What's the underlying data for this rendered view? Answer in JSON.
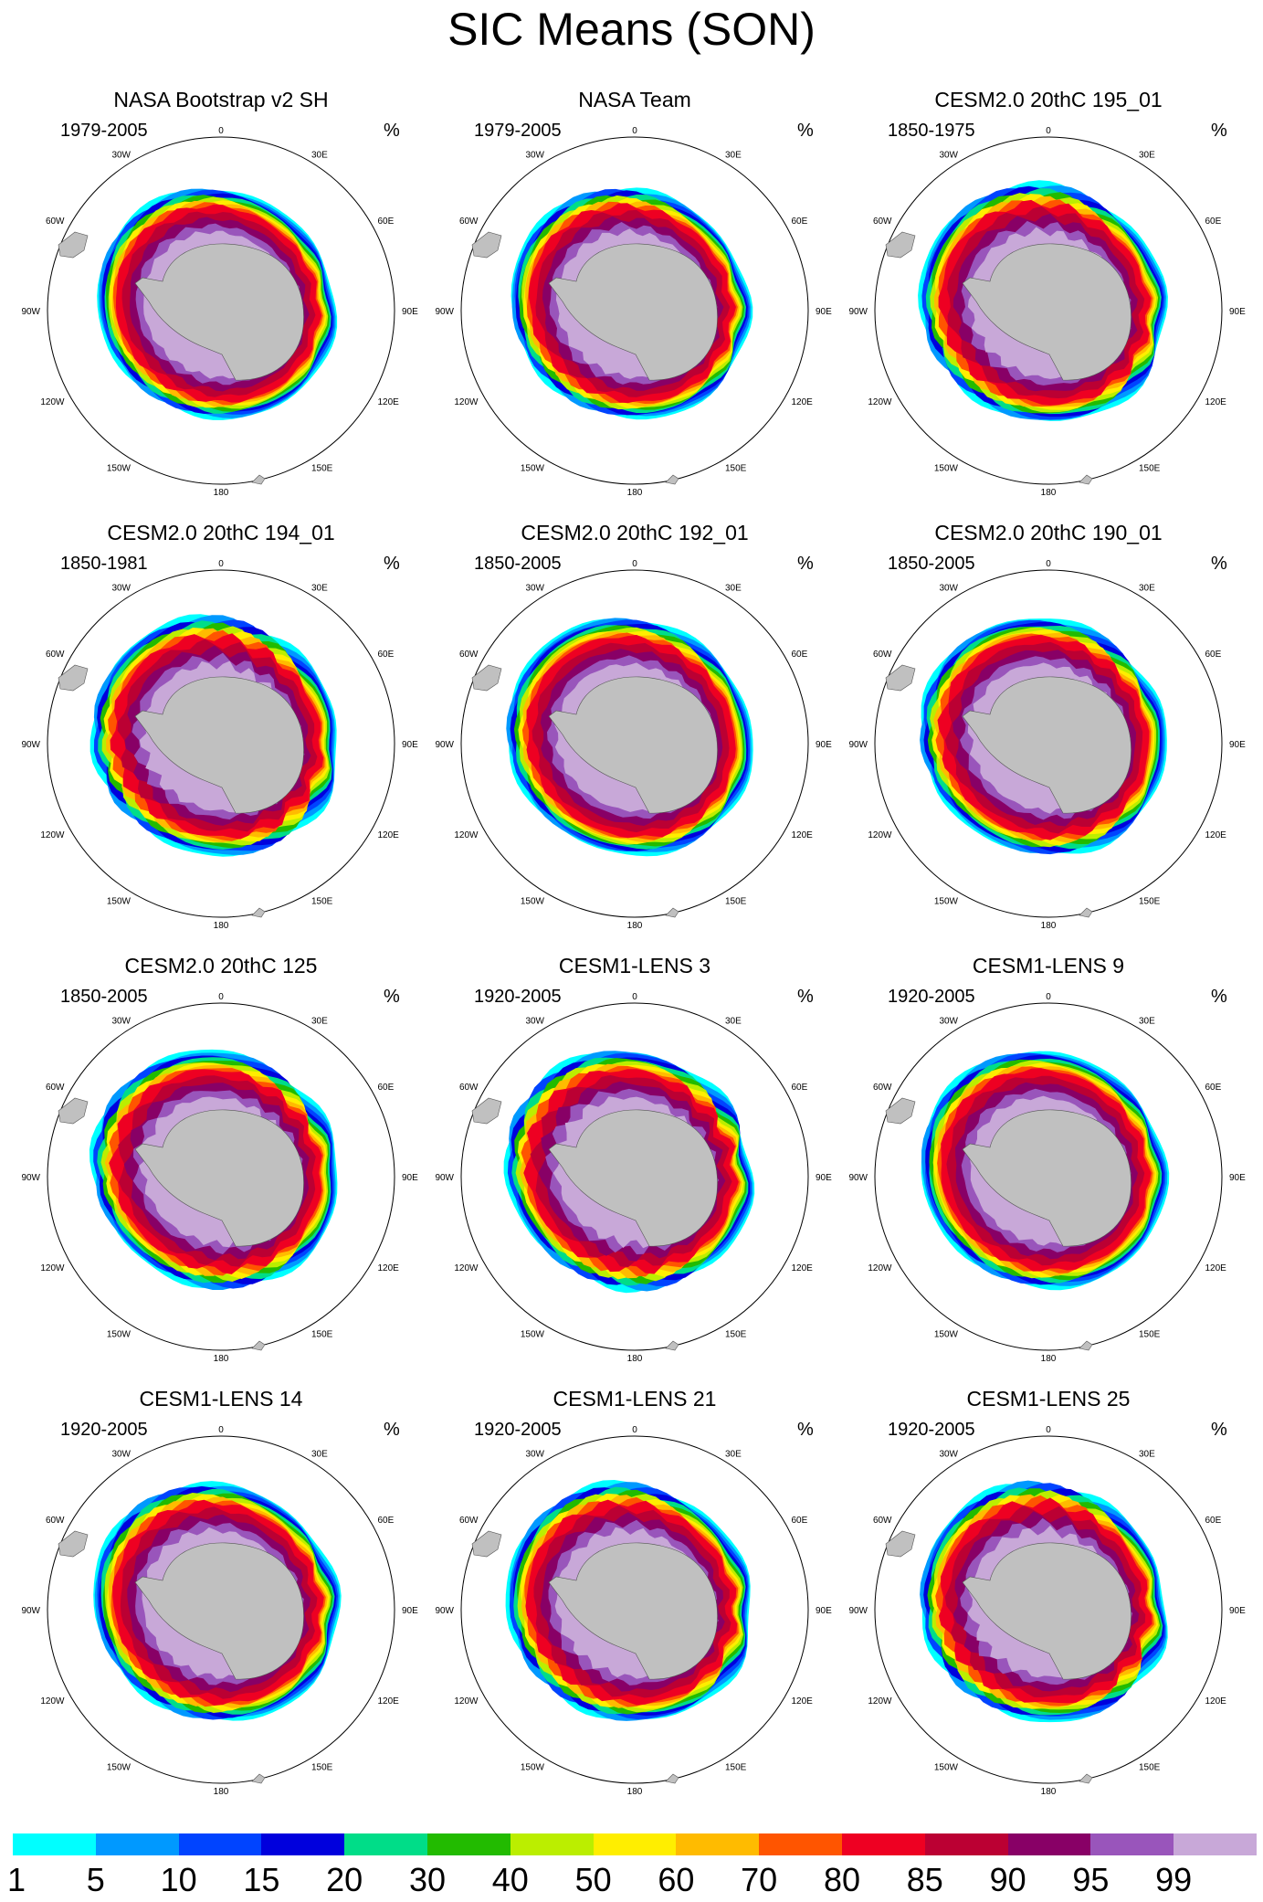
{
  "title": "SIC Means (SON)",
  "unit": "%",
  "longitude_labels": [
    "0",
    "30E",
    "60E",
    "90E",
    "120E",
    "150E",
    "180",
    "150W",
    "120W",
    "90W",
    "60W",
    "30W"
  ],
  "colors": {
    "land": "#c0c0c0",
    "ocean": "#ffffff",
    "circle": "#000000"
  },
  "colorbar": {
    "labels": [
      "1",
      "5",
      "10",
      "15",
      "20",
      "30",
      "40",
      "50",
      "60",
      "70",
      "80",
      "85",
      "90",
      "95",
      "99"
    ],
    "colors": [
      "#00ffff",
      "#0099ff",
      "#0044ff",
      "#0000dd",
      "#00dd88",
      "#22bb00",
      "#bbee00",
      "#ffee00",
      "#ffbb00",
      "#ff5500",
      "#ee0022",
      "#bb0033",
      "#880066",
      "#9955bb",
      "#c8a8d8"
    ]
  },
  "panels": [
    {
      "title": "NASA Bootstrap v2 SH",
      "years": "1979-2005"
    },
    {
      "title": "NASA Team",
      "years": "1979-2005"
    },
    {
      "title": "CESM2.0 20thC 195_01",
      "years": "1850-1975"
    },
    {
      "title": "CESM2.0 20thC 194_01",
      "years": "1850-1981"
    },
    {
      "title": "CESM2.0 20thC 192_01",
      "years": "1850-2005"
    },
    {
      "title": "CESM2.0 20thC 190_01",
      "years": "1850-2005"
    },
    {
      "title": "CESM2.0 20thC 125",
      "years": "1850-2005"
    },
    {
      "title": "CESM1-LENS 3",
      "years": "1920-2005"
    },
    {
      "title": "CESM1-LENS 9",
      "years": "1920-2005"
    },
    {
      "title": "CESM1-LENS 14",
      "years": "1920-2005"
    },
    {
      "title": "CESM1-LENS 21",
      "years": "1920-2005"
    },
    {
      "title": "CESM1-LENS 25",
      "years": "1920-2005"
    }
  ]
}
